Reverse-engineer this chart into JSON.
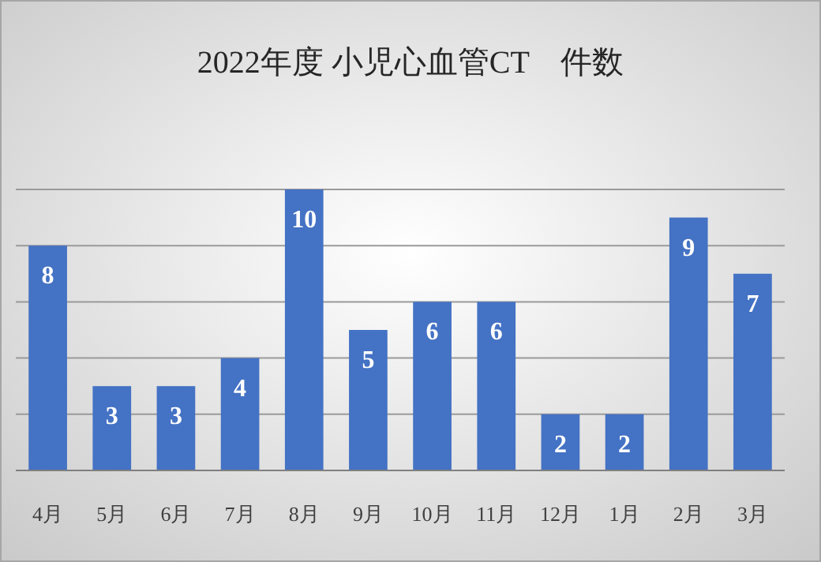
{
  "chart_data": {
    "type": "bar",
    "title": "2022年度 小児心血管CT　件数",
    "categories": [
      "4月",
      "5月",
      "6月",
      "7月",
      "8月",
      "9月",
      "10月",
      "11月",
      "12月",
      "1月",
      "2月",
      "3月"
    ],
    "values": [
      8,
      3,
      3,
      4,
      10,
      5,
      6,
      6,
      2,
      2,
      9,
      7
    ],
    "color": "#4472c4",
    "ylim": [
      0,
      10
    ],
    "yticks": [
      {
        "value": 0,
        "label": null
      },
      {
        "value": 2,
        "label": null
      },
      {
        "value": 4,
        "label": null
      },
      {
        "value": 6,
        "label": null
      },
      {
        "value": 8,
        "label": null
      },
      {
        "value": 10,
        "label": null
      }
    ],
    "tick_labels": "x",
    "grid": "y",
    "data_labels": true
  }
}
